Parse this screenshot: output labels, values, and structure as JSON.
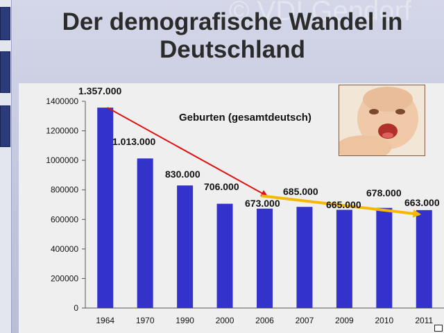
{
  "slide": {
    "title_line1": "Der demografische Wandel in",
    "title_line2": "Deutschland",
    "watermark": "© VDI Gendorf"
  },
  "chart_data": {
    "type": "bar",
    "title": "Geburten (gesamtdeutsch)",
    "categories": [
      "1964",
      "1970",
      "1990",
      "2000",
      "2006",
      "2007",
      "2009",
      "2010",
      "2011"
    ],
    "values": [
      1357000,
      1013000,
      830000,
      706000,
      673000,
      685000,
      665000,
      678000,
      663000
    ],
    "data_labels": [
      "1.357.000",
      "1.013.000",
      "830.000",
      "706.000",
      "673.000",
      "685.000",
      "665.000",
      "678.000",
      "663.000"
    ],
    "ylim": [
      0,
      1400000
    ],
    "yticks": [
      0,
      200000,
      400000,
      600000,
      800000,
      1000000,
      1200000,
      1400000
    ],
    "grid": false,
    "bar_color": "#3333cc",
    "trend_arrows": [
      {
        "from_category": "1964",
        "from_value": 1357000,
        "to_category": "2006",
        "to_value": 760000,
        "color": "#e01010"
      },
      {
        "from_category": "2006",
        "from_value": 760000,
        "to_category": "2011",
        "to_value": 635000,
        "color": "#f5b800"
      }
    ]
  },
  "colors": {
    "bar": "#3333cc",
    "red_arrow": "#e01010",
    "yellow_arrow": "#f5b800"
  }
}
